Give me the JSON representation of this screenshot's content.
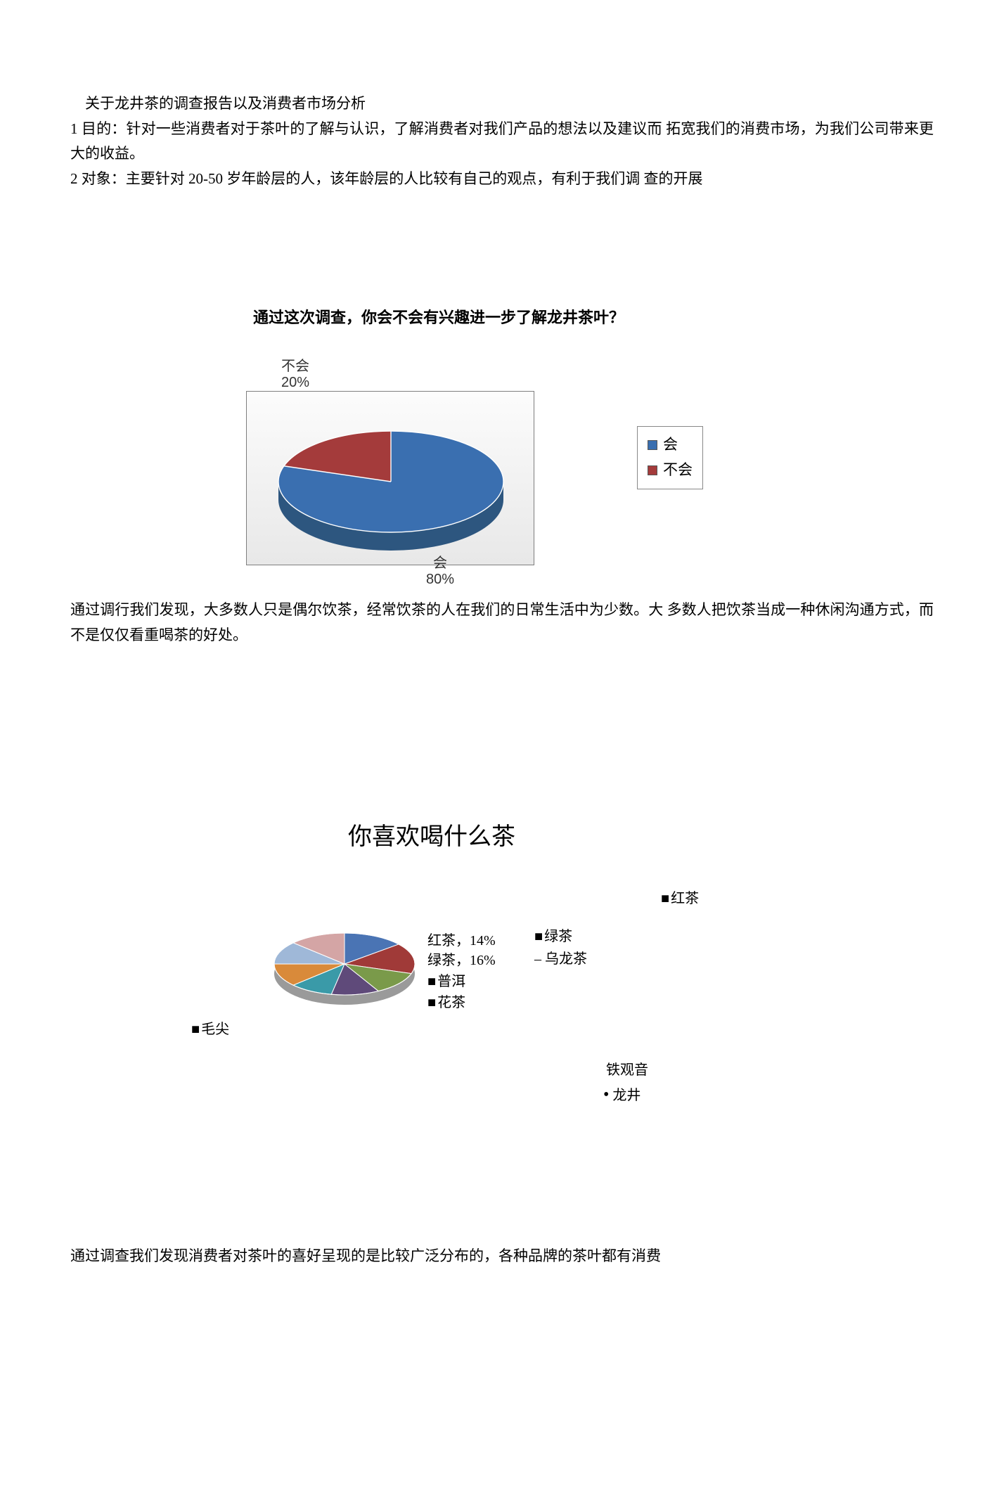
{
  "doc": {
    "title": "关于龙井茶的调查报告以及消费者市场分析",
    "para1": "1 目的：针对一些消费者对于茶叶的了解与认识，了解消费者对我们产品的想法以及建议而 拓宽我们的消费市场，为我们公司带来更大的收益。",
    "para2": "2 对象：主要针对 20-50 岁年龄层的人，该年龄层的人比较有自己的观点，有利于我们调 查的开展",
    "mid": "通过调行我们发现，大多数人只是偶尔饮茶，经常饮茶的人在我们的日常生活中为少数。大 多数人把饮茶当成一种休闲沟通方式，而不是仅仅看重喝茶的好处。",
    "end": "通过调查我们发现消费者对茶叶的喜好呈现的是比较广泛分布的，各种品牌的茶叶都有消费"
  },
  "chart1": {
    "title": "通过这次调查，你会不会有兴趣进一步了解龙井茶叶？",
    "type": "pie-3d",
    "slices": [
      {
        "label": "会",
        "value": 80,
        "color": "#3a6fb0",
        "side": "#2d567f"
      },
      {
        "label": "不会",
        "value": 20,
        "color": "#a43b3b",
        "side": "#7b2c2c"
      }
    ],
    "label_no_name": "不会",
    "label_no_pct": "20%",
    "label_yes_name": "会",
    "label_yes_pct": "80%",
    "legend": {
      "yes": "会",
      "no": "不会"
    },
    "background": "#ffffff",
    "plot_border": "#7e7e7e"
  },
  "chart2": {
    "title": "你喜欢喝什么茶",
    "type": "pie-3d",
    "slices": [
      {
        "name": "红茶",
        "value": 14,
        "color": "#4a74b4"
      },
      {
        "name": "绿茶",
        "value": 16,
        "color": "#a03a38"
      },
      {
        "name": "乌龙茶",
        "value": 12,
        "color": "#7a9a4a"
      },
      {
        "name": "普洱",
        "value": 11,
        "color": "#5f4a7a"
      },
      {
        "name": "花茶",
        "value": 10,
        "color": "#3a9aa8"
      },
      {
        "name": "毛尖",
        "value": 12,
        "color": "#d98a3a"
      },
      {
        "name": "铁观音",
        "value": 12,
        "color": "#9fb8d8"
      },
      {
        "name": "龙井",
        "value": 13,
        "color": "#d4a5a5"
      }
    ],
    "callout_red": "红茶，14%",
    "callout_green": "绿茶，16%",
    "legend": {
      "red": "红茶",
      "green": "绿茶",
      "oolong": "乌龙茶",
      "puer": "普洱",
      "flower": "花茶",
      "maojian": "毛尖",
      "tieguanyin": "铁观音",
      "longjing": "龙井"
    }
  }
}
